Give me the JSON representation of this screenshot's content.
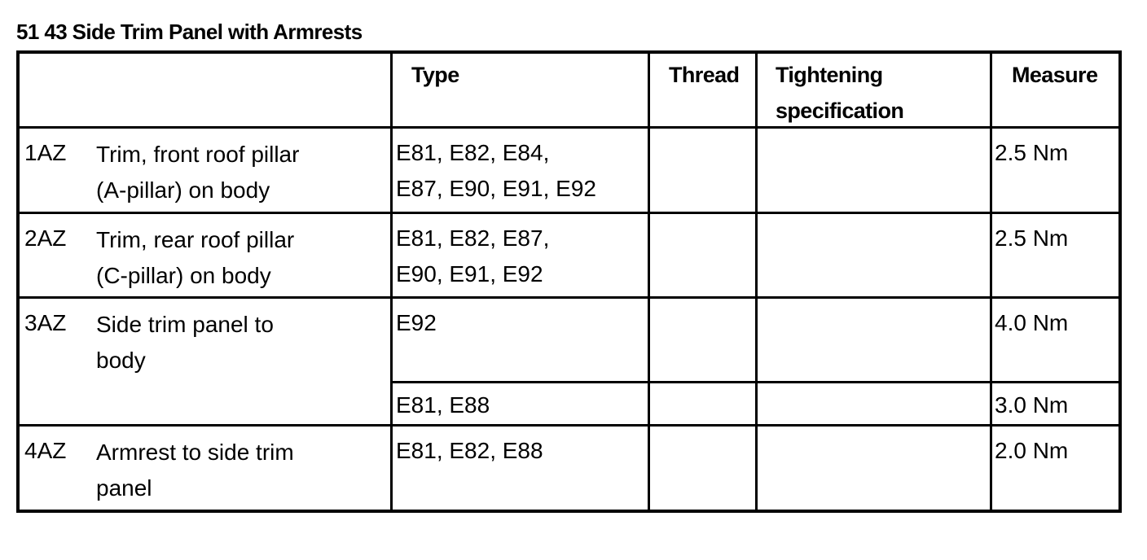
{
  "title": "51 43 Side Trim Panel with Armrests",
  "table": {
    "headers": [
      "",
      "Type",
      "Thread",
      "Tightening\nspecification",
      "Measure"
    ],
    "rows": [
      {
        "id": "1AZ",
        "description": "Trim, front roof pillar\n(A-pillar) on body",
        "type": "E81, E82, E84,\nE87, E90, E91, E92",
        "thread": "",
        "spec": "",
        "measure": "2.5 Nm"
      },
      {
        "id": "2AZ",
        "description": "Trim, rear roof pillar\n(C-pillar) on body",
        "type": "E81, E82, E87,\nE90, E91, E92",
        "thread": "",
        "spec": "",
        "measure": "2.5 Nm"
      },
      {
        "id": "3AZ",
        "description": "Side trim panel to\nbody",
        "type": "E92",
        "thread": "",
        "spec": "",
        "measure": "4.0 Nm"
      },
      {
        "id": "",
        "description": "",
        "type": "E81, E88",
        "thread": "",
        "spec": "",
        "measure": "3.0 Nm"
      },
      {
        "id": "4AZ",
        "description": "Armrest to side trim\npanel",
        "type": "E81, E82, E88",
        "thread": "",
        "spec": "",
        "measure": "2.0 Nm"
      }
    ]
  }
}
